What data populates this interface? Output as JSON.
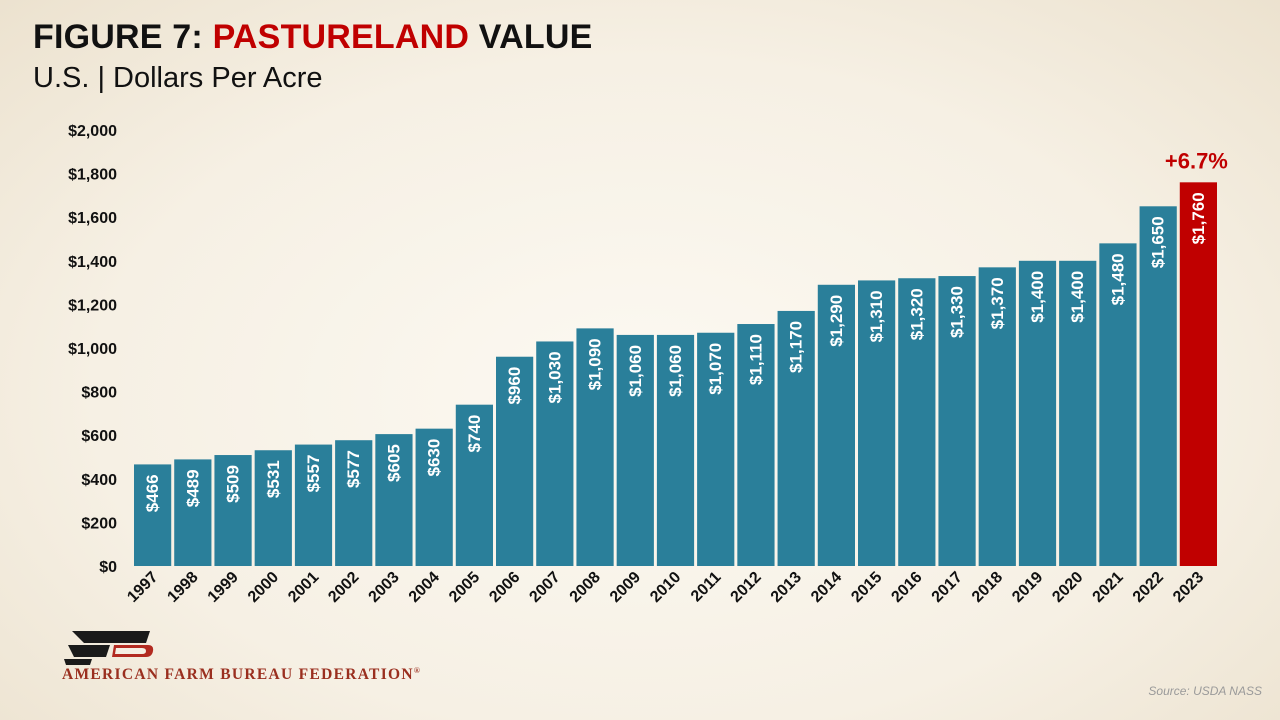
{
  "header": {
    "title_prefix": "FIGURE 7: ",
    "title_accent": "PASTURELAND",
    "title_suffix": " VALUE",
    "subtitle": "U.S. | Dollars Per Acre"
  },
  "colors": {
    "bar": "#2a7f9a",
    "highlight_bar": "#c00000",
    "accent": "#c00000",
    "background": "#f5efe3"
  },
  "chart_data": {
    "type": "bar",
    "title": "FIGURE 7: PASTURELAND VALUE",
    "subtitle": "U.S. | Dollars Per Acre",
    "categories": [
      "1997",
      "1998",
      "1999",
      "2000",
      "2001",
      "2002",
      "2003",
      "2004",
      "2005",
      "2006",
      "2007",
      "2008",
      "2009",
      "2010",
      "2011",
      "2012",
      "2013",
      "2014",
      "2015",
      "2016",
      "2017",
      "2018",
      "2019",
      "2020",
      "2021",
      "2022",
      "2023"
    ],
    "values": [
      466,
      489,
      509,
      531,
      557,
      577,
      605,
      630,
      740,
      960,
      1030,
      1090,
      1060,
      1060,
      1070,
      1110,
      1170,
      1290,
      1310,
      1320,
      1330,
      1370,
      1400,
      1400,
      1480,
      1650,
      1760
    ],
    "data_labels": [
      "$466",
      "$489",
      "$509",
      "$531",
      "$557",
      "$577",
      "$605",
      "$630",
      "$740",
      "$960",
      "$1,030",
      "$1,090",
      "$1,060",
      "$1,060",
      "$1,070",
      "$1,110",
      "$1,170",
      "$1,290",
      "$1,310",
      "$1,320",
      "$1,330",
      "$1,370",
      "$1,400",
      "$1,400",
      "$1,480",
      "$1,650",
      "$1,760"
    ],
    "yticks": [
      0,
      200,
      400,
      600,
      800,
      1000,
      1200,
      1400,
      1600,
      1800,
      2000
    ],
    "ytick_labels": [
      "$0",
      "$200",
      "$400",
      "$600",
      "$800",
      "$1,000",
      "$1,200",
      "$1,400",
      "$1,600",
      "$1,800",
      "$2,000"
    ],
    "ylim": [
      0,
      2000
    ],
    "xlabel": "",
    "ylabel": "",
    "grid": false,
    "highlight_index": 26,
    "annotation": "+6.7%"
  },
  "footer": {
    "org_name": "AMERICAN FARM BUREAU FEDERATION",
    "registered": "®",
    "source": "Source: USDA NASS"
  }
}
